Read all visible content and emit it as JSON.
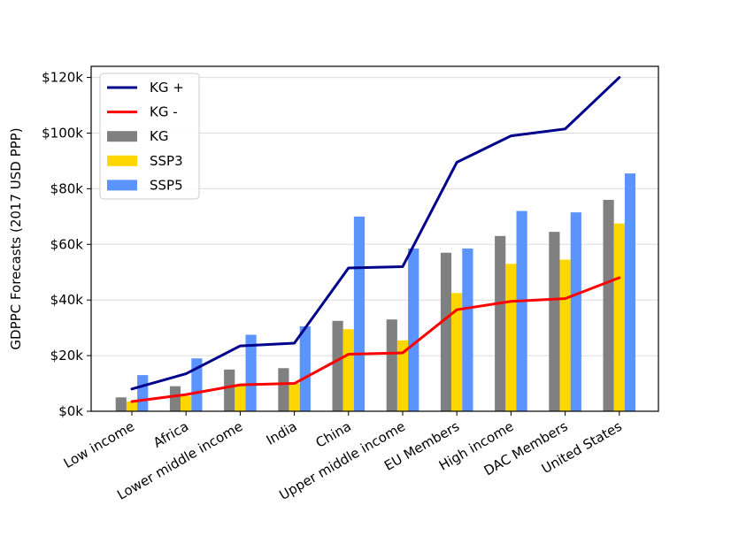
{
  "chart_data": {
    "type": "bar",
    "ylabel": "GDPPC Forecasts (2017 USD PPP)",
    "xlabel": "",
    "title": "",
    "ylim": [
      0,
      124000
    ],
    "yticks": [
      0,
      20000,
      40000,
      60000,
      80000,
      100000,
      120000
    ],
    "ytick_labels": [
      "$0k",
      "$20k",
      "$40k",
      "$60k",
      "$80k",
      "$100k",
      "$120k"
    ],
    "grid": "horizontal",
    "legend_position": "top-left",
    "categories": [
      "Low income",
      "Africa",
      "Lower middle income",
      "India",
      "China",
      "Upper middle income",
      "EU Members",
      "High income",
      "DAC Members",
      "United States"
    ],
    "bars": [
      {
        "name": "KG",
        "color": "#808080",
        "values": [
          5000,
          9000,
          15000,
          15500,
          32500,
          33000,
          57000,
          63000,
          64500,
          76000
        ]
      },
      {
        "name": "SSP3",
        "color": "#ffd700",
        "values": [
          3500,
          5500,
          9500,
          10000,
          29500,
          25500,
          42500,
          53000,
          54500,
          67500
        ]
      },
      {
        "name": "SSP5",
        "color": "#5b93ff",
        "values": [
          13000,
          19000,
          27500,
          30500,
          70000,
          58500,
          58500,
          72000,
          71500,
          85500
        ]
      }
    ],
    "lines": [
      {
        "name": "KG +",
        "color": "#00008b",
        "values": [
          8000,
          13500,
          23500,
          24500,
          51500,
          52000,
          89500,
          99000,
          101500,
          120000
        ]
      },
      {
        "name": "KG -",
        "color": "#ff0000",
        "values": [
          3500,
          6000,
          9500,
          10000,
          20500,
          21000,
          36500,
          39500,
          40500,
          48000
        ]
      }
    ],
    "legend": [
      {
        "label": "KG +",
        "kind": "line",
        "color": "#00008b"
      },
      {
        "label": "KG -",
        "kind": "line",
        "color": "#ff0000"
      },
      {
        "label": "KG",
        "kind": "bar",
        "color": "#808080"
      },
      {
        "label": "SSP3",
        "kind": "bar",
        "color": "#ffd700"
      },
      {
        "label": "SSP5",
        "kind": "bar",
        "color": "#5b93ff"
      }
    ]
  }
}
